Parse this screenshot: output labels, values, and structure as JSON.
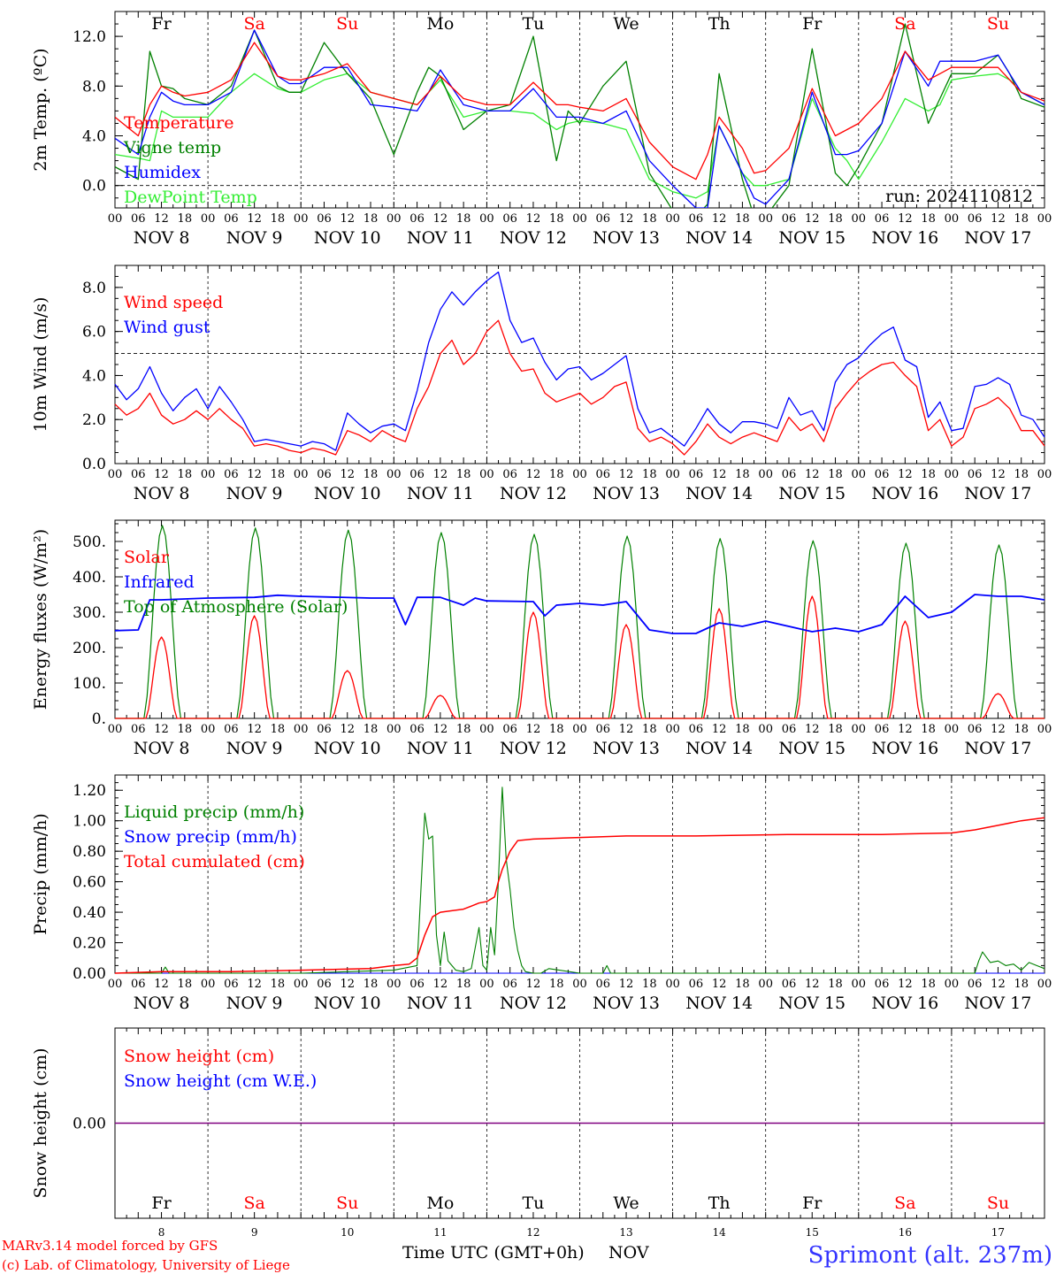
{
  "colors": {
    "red": "#ff0000",
    "green": "#008000",
    "blue": "#0000ff",
    "lightgreen": "#33ee33",
    "purple": "#800080",
    "footer_blue": "#3333ff"
  },
  "timeline": {
    "hour_labels": [
      "00",
      "06",
      "12",
      "18"
    ],
    "end_label": "00",
    "dates": [
      "NOV  8",
      "NOV  9",
      "NOV 10",
      "NOV 11",
      "NOV 12",
      "NOV 13",
      "NOV 14",
      "NOV 15",
      "NOV 16",
      "NOV 17"
    ],
    "weekdays": [
      "Fr",
      "Sa",
      "Su",
      "Mo",
      "Tu",
      "We",
      "Th",
      "Fr",
      "Sa",
      "Su"
    ],
    "weekend": [
      false,
      true,
      true,
      false,
      false,
      false,
      false,
      false,
      true,
      true
    ],
    "day_numbers": [
      "8",
      "9",
      "10",
      "11",
      "12",
      "13",
      "14",
      "15",
      "16",
      "17"
    ]
  },
  "footer": {
    "model_line": "MARv3.14 model forced by GFS",
    "copyright_line": "(c) Lab. of Climatology, University of Liege",
    "time_axis_label": "Time UTC (GMT+0h)",
    "month_label": "NOV",
    "station": "Sprimont (alt. 237m)"
  },
  "chart_data": [
    {
      "type": "line",
      "id": "temperature",
      "ylabel": "2m Temp. (ºC)",
      "ylim": [
        -1.8,
        14
      ],
      "yticks": [
        0,
        4,
        8,
        12
      ],
      "ytick_labels": [
        "0.0",
        "4.0",
        "8.0",
        "12.0"
      ],
      "hline": 0,
      "annotation": "run: 2024110812",
      "x_unit": "hours since 2024-11-08 00 UTC",
      "x": [
        0,
        6,
        9,
        12,
        15,
        18,
        24,
        30,
        36,
        42,
        45,
        48,
        54,
        60,
        66,
        72,
        78,
        81,
        84,
        90,
        96,
        102,
        108,
        114,
        117,
        120,
        126,
        132,
        138,
        144,
        150,
        153,
        156,
        162,
        165,
        168,
        174,
        180,
        186,
        189,
        192,
        198,
        204,
        210,
        213,
        216,
        222,
        228,
        231,
        234,
        240
      ],
      "series": [
        {
          "name": "Temperature",
          "color": "red",
          "values": [
            5.5,
            4.0,
            6.5,
            8.0,
            7.5,
            7.2,
            7.5,
            8.5,
            11.5,
            8.8,
            8.5,
            8.5,
            9.0,
            9.8,
            7.5,
            7.0,
            6.5,
            7.5,
            8.8,
            7.0,
            6.5,
            6.5,
            8.3,
            6.5,
            6.5,
            6.3,
            6.0,
            7.0,
            3.5,
            1.5,
            0.5,
            2.5,
            5.5,
            3.0,
            1.0,
            1.2,
            3.0,
            7.8,
            4.0,
            4.5,
            5.0,
            7.0,
            10.8,
            8.5,
            9.0,
            9.5,
            9.5,
            9.5,
            8.5,
            7.5,
            6.8
          ]
        },
        {
          "name": "Vigne temp",
          "color": "green",
          "values": [
            1.5,
            0.5,
            10.8,
            8.0,
            7.8,
            7.0,
            6.5,
            8.0,
            12.5,
            8.0,
            7.5,
            7.5,
            11.5,
            9.0,
            7.0,
            2.5,
            7.5,
            9.5,
            8.8,
            4.5,
            6.0,
            6.5,
            12.0,
            2.0,
            6.0,
            5.0,
            8.0,
            10.0,
            1.0,
            -2.0,
            -2.5,
            -1.5,
            9.0,
            0.5,
            -2.5,
            -2.5,
            0.0,
            11.0,
            1.0,
            0.0,
            1.5,
            5.0,
            13.0,
            5.0,
            7.0,
            9.0,
            9.0,
            10.5,
            9.0,
            7.0,
            6.3
          ]
        },
        {
          "name": "Humidex",
          "color": "blue",
          "values": [
            3.8,
            2.5,
            5.5,
            7.5,
            6.8,
            6.5,
            6.5,
            7.5,
            12.5,
            8.8,
            8.2,
            8.2,
            9.5,
            9.5,
            6.5,
            6.3,
            6.0,
            7.5,
            9.3,
            6.5,
            6.0,
            6.0,
            7.8,
            5.5,
            5.5,
            5.5,
            5.0,
            6.0,
            2.0,
            0.0,
            -1.8,
            -1.8,
            4.8,
            1.0,
            -1.0,
            -1.5,
            0.5,
            7.5,
            2.5,
            2.5,
            2.8,
            5.0,
            10.8,
            8.0,
            10.0,
            10.0,
            10.0,
            10.5,
            9.0,
            7.5,
            6.5
          ]
        },
        {
          "name": "DewPoint Temp",
          "color": "lightgreen",
          "values": [
            2.5,
            2.2,
            2.0,
            6.0,
            5.5,
            5.5,
            5.5,
            7.5,
            9.0,
            7.8,
            7.5,
            7.5,
            8.5,
            9.0,
            7.5,
            7.0,
            6.5,
            7.5,
            8.5,
            5.5,
            6.0,
            6.0,
            5.8,
            4.5,
            5.0,
            5.2,
            5.0,
            4.5,
            0.5,
            -0.5,
            -1.0,
            -0.5,
            4.8,
            1.0,
            0.0,
            0.0,
            0.5,
            7.0,
            3.0,
            2.0,
            0.5,
            3.5,
            7.0,
            6.0,
            6.5,
            8.5,
            8.8,
            9.0,
            8.5,
            7.5,
            6.5
          ]
        }
      ]
    },
    {
      "type": "line",
      "id": "wind",
      "ylabel": "10m Wind (m/s)",
      "ylim": [
        0,
        9
      ],
      "yticks": [
        0,
        2,
        4,
        6,
        8
      ],
      "ytick_labels": [
        "0.0",
        "2.0",
        "4.0",
        "6.0",
        "8.0"
      ],
      "hline": 5,
      "x_unit": "hours since 2024-11-08 00 UTC",
      "x": [
        0,
        3,
        6,
        9,
        12,
        15,
        18,
        21,
        24,
        27,
        30,
        33,
        36,
        39,
        42,
        45,
        48,
        51,
        54,
        57,
        60,
        63,
        66,
        69,
        72,
        75,
        78,
        81,
        84,
        87,
        90,
        93,
        96,
        99,
        102,
        105,
        108,
        111,
        114,
        117,
        120,
        123,
        126,
        129,
        132,
        135,
        138,
        141,
        144,
        147,
        150,
        153,
        156,
        159,
        162,
        165,
        168,
        171,
        174,
        177,
        180,
        183,
        186,
        189,
        192,
        195,
        198,
        201,
        204,
        207,
        210,
        213,
        216,
        219,
        222,
        225,
        228,
        231,
        234,
        237,
        240
      ],
      "series": [
        {
          "name": "Wind speed",
          "color": "red",
          "values": [
            2.7,
            2.2,
            2.5,
            3.2,
            2.2,
            1.8,
            2.0,
            2.4,
            2.0,
            2.5,
            2.0,
            1.6,
            0.8,
            0.9,
            0.8,
            0.6,
            0.5,
            0.7,
            0.6,
            0.4,
            1.5,
            1.3,
            1.0,
            1.5,
            1.2,
            1.0,
            2.5,
            3.5,
            5.0,
            5.6,
            4.5,
            5.0,
            6.0,
            6.5,
            5.0,
            4.2,
            4.3,
            3.2,
            2.8,
            3.0,
            3.2,
            2.7,
            3.0,
            3.5,
            3.7,
            1.6,
            1.0,
            1.2,
            0.9,
            0.4,
            1.0,
            1.8,
            1.2,
            0.9,
            1.2,
            1.4,
            1.2,
            1.0,
            2.1,
            1.5,
            1.8,
            1.0,
            2.5,
            3.2,
            3.8,
            4.2,
            4.5,
            4.6,
            4.0,
            3.5,
            1.5,
            2.0,
            0.8,
            1.2,
            2.5,
            2.7,
            3.0,
            2.5,
            1.5,
            1.5,
            0.8
          ]
        },
        {
          "name": "Wind gust",
          "color": "blue",
          "values": [
            3.6,
            2.9,
            3.4,
            4.4,
            3.2,
            2.4,
            3.0,
            3.4,
            2.5,
            3.5,
            2.8,
            2.0,
            1.0,
            1.1,
            1.0,
            0.9,
            0.8,
            1.0,
            0.9,
            0.6,
            2.3,
            1.8,
            1.4,
            1.7,
            1.8,
            1.5,
            3.3,
            5.5,
            7.0,
            7.8,
            7.2,
            7.8,
            8.3,
            8.7,
            6.5,
            5.5,
            5.7,
            4.6,
            3.8,
            4.3,
            4.4,
            3.8,
            4.1,
            4.5,
            4.9,
            2.5,
            1.4,
            1.6,
            1.2,
            0.8,
            1.6,
            2.5,
            1.8,
            1.4,
            1.9,
            1.9,
            1.8,
            1.6,
            3.0,
            2.2,
            2.4,
            1.5,
            3.7,
            4.5,
            4.8,
            5.4,
            5.9,
            6.2,
            4.7,
            4.4,
            2.1,
            2.8,
            1.5,
            1.6,
            3.5,
            3.6,
            3.9,
            3.6,
            2.2,
            2.0,
            1.2
          ]
        }
      ]
    },
    {
      "type": "line",
      "id": "energy",
      "ylabel": "Energy fluxes (W/m²)",
      "ylim": [
        0,
        560
      ],
      "yticks": [
        0,
        100,
        200,
        300,
        400,
        500
      ],
      "ytick_labels": [
        "0.",
        "100.",
        "200.",
        "300.",
        "400.",
        "500."
      ],
      "x_unit": "hours since 2024-11-08 00 UTC",
      "day_peak_hour": 12,
      "solar_window_hours": [
        8,
        16
      ],
      "toa_window_hours": [
        7.5,
        17
      ],
      "series": [
        {
          "name": "Solar",
          "color": "red",
          "daily_peak": [
            230,
            290,
            135,
            65,
            300,
            265,
            310,
            345,
            275,
            70
          ]
        },
        {
          "name": "Infrared",
          "color": "blue",
          "x": [
            0,
            6,
            9,
            12,
            24,
            36,
            42,
            48,
            66,
            72,
            75,
            78,
            84,
            90,
            93,
            96,
            108,
            111,
            114,
            120,
            126,
            132,
            138,
            144,
            150,
            156,
            162,
            168,
            180,
            186,
            192,
            198,
            204,
            210,
            216,
            222,
            228,
            234,
            240
          ],
          "values": [
            248,
            250,
            335,
            335,
            340,
            342,
            348,
            345,
            340,
            340,
            265,
            342,
            342,
            320,
            340,
            332,
            330,
            290,
            320,
            325,
            320,
            330,
            250,
            240,
            240,
            270,
            260,
            275,
            245,
            255,
            245,
            265,
            345,
            285,
            300,
            350,
            345,
            345,
            335
          ]
        },
        {
          "name": "Top of Atmosphere (Solar)",
          "color": "green",
          "daily_peak": [
            545,
            538,
            532,
            525,
            520,
            515,
            508,
            502,
            495,
            490
          ]
        }
      ]
    },
    {
      "type": "line",
      "id": "precip",
      "ylabel": "Precip (mm/h)",
      "ylim": [
        0,
        1.3
      ],
      "yticks": [
        0,
        0.2,
        0.4,
        0.6,
        0.8,
        1.0,
        1.2
      ],
      "ytick_labels": [
        "0.00",
        "0.20",
        "0.40",
        "0.60",
        "0.80",
        "1.00",
        "1.20"
      ],
      "x_unit": "hours since 2024-11-08 00 UTC",
      "series": [
        {
          "name": "Liquid precip (mm/h)",
          "color": "green",
          "x": [
            0,
            12,
            13,
            14,
            24,
            48,
            72,
            78,
            80,
            81,
            82,
            83,
            84,
            85,
            86,
            88,
            90,
            92,
            94,
            95,
            96,
            97,
            98,
            99,
            100,
            101,
            102,
            103,
            104,
            105,
            106,
            108,
            110,
            112,
            120,
            126,
            127,
            128,
            200,
            216,
            222,
            223,
            224,
            226,
            228,
            230,
            232,
            234,
            236,
            238,
            240
          ],
          "values": [
            0,
            0,
            0.04,
            0,
            0,
            0,
            0.02,
            0.05,
            1.05,
            0.88,
            0.9,
            0.25,
            0.05,
            0.27,
            0.08,
            0.02,
            0.01,
            0.03,
            0.3,
            0.05,
            0.02,
            0.3,
            0.12,
            0.6,
            1.22,
            0.75,
            0.55,
            0.3,
            0.15,
            0.05,
            0.01,
            0,
            0,
            0.03,
            0,
            0,
            0.05,
            0,
            0,
            0,
            0,
            0.08,
            0.14,
            0.07,
            0.08,
            0.05,
            0.06,
            0.02,
            0.07,
            0.05,
            0.03
          ]
        },
        {
          "name": "Snow precip (mm/h)",
          "color": "blue",
          "x": [
            0,
            240
          ],
          "values": [
            0,
            0
          ]
        },
        {
          "name": "Total cumulated (cm)",
          "color": "red",
          "x": [
            0,
            12,
            30,
            48,
            66,
            72,
            76,
            78,
            80,
            82,
            84,
            90,
            92,
            94,
            96,
            98,
            99,
            100,
            102,
            104,
            108,
            120,
            132,
            150,
            174,
            198,
            216,
            222,
            228,
            234,
            240
          ],
          "values": [
            0,
            0.01,
            0.01,
            0.02,
            0.03,
            0.05,
            0.06,
            0.1,
            0.25,
            0.37,
            0.4,
            0.42,
            0.44,
            0.46,
            0.47,
            0.5,
            0.6,
            0.68,
            0.8,
            0.87,
            0.88,
            0.89,
            0.9,
            0.9,
            0.91,
            0.91,
            0.92,
            0.94,
            0.97,
            1.0,
            1.02
          ]
        }
      ]
    },
    {
      "type": "line",
      "id": "snow",
      "ylabel": "Snow height (cm)",
      "ylim": [
        -1,
        1
      ],
      "yticks": [
        0
      ],
      "ytick_labels": [
        "0.00"
      ],
      "x_unit": "hours since 2024-11-08 00 UTC",
      "x": [
        0,
        240
      ],
      "series": [
        {
          "name": "Snow height (cm)",
          "color": "red",
          "values": [
            0,
            0
          ]
        },
        {
          "name": "Snow height (cm W.E.)",
          "color": "blue",
          "values": [
            0,
            0
          ]
        }
      ]
    }
  ]
}
